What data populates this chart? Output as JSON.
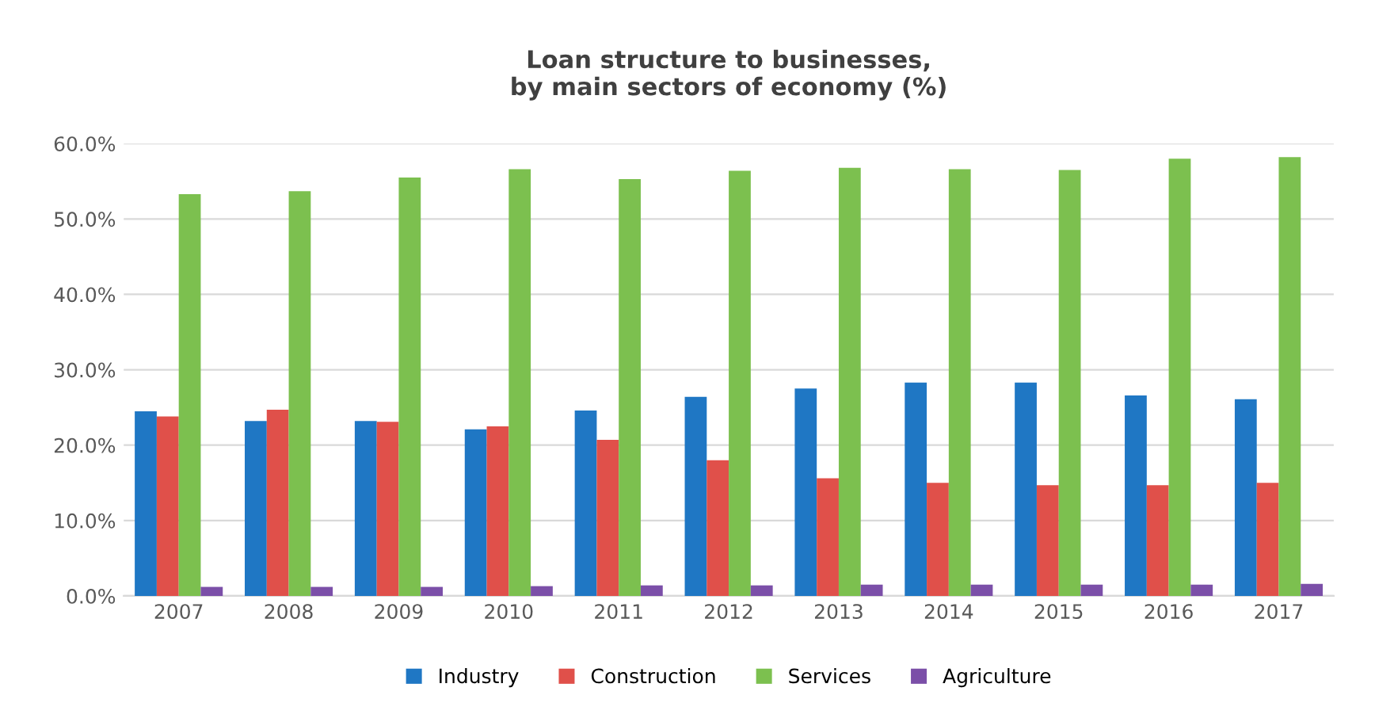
{
  "chart_data": {
    "type": "bar",
    "title": "Loan structure to businesses,\nby main sectors of economy (%)",
    "categories": [
      "2007",
      "2008",
      "2009",
      "2010",
      "2011",
      "2012",
      "2013",
      "2014",
      "2015",
      "2016",
      "2017"
    ],
    "series": [
      {
        "name": "Industry",
        "color": "#1f77c4",
        "values": [
          24.5,
          23.2,
          23.2,
          22.1,
          24.6,
          26.4,
          27.5,
          28.3,
          28.3,
          26.6,
          26.1
        ]
      },
      {
        "name": "Construction",
        "color": "#e0504a",
        "values": [
          23.8,
          24.7,
          23.1,
          22.5,
          20.7,
          18.0,
          15.6,
          15.0,
          14.7,
          14.7,
          15.0
        ]
      },
      {
        "name": "Services",
        "color": "#7cc04f",
        "values": [
          53.3,
          53.7,
          55.5,
          56.6,
          55.3,
          56.4,
          56.8,
          56.6,
          56.5,
          58.0,
          58.2
        ]
      },
      {
        "name": "Agriculture",
        "color": "#7b4fa8",
        "values": [
          1.2,
          1.2,
          1.2,
          1.3,
          1.4,
          1.4,
          1.5,
          1.5,
          1.5,
          1.5,
          1.6
        ]
      }
    ],
    "ylim": [
      0,
      60
    ],
    "yticks": [
      {
        "value": 0,
        "label": "0.0%"
      },
      {
        "value": 10,
        "label": "10.0%"
      },
      {
        "value": 20,
        "label": "20.0%"
      },
      {
        "value": 30,
        "label": "30.0%"
      },
      {
        "value": 40,
        "label": "40.0%"
      },
      {
        "value": 50,
        "label": "50.0%"
      },
      {
        "value": 60,
        "label": "60.0%"
      }
    ],
    "grid": "y",
    "legend": "bottom"
  }
}
